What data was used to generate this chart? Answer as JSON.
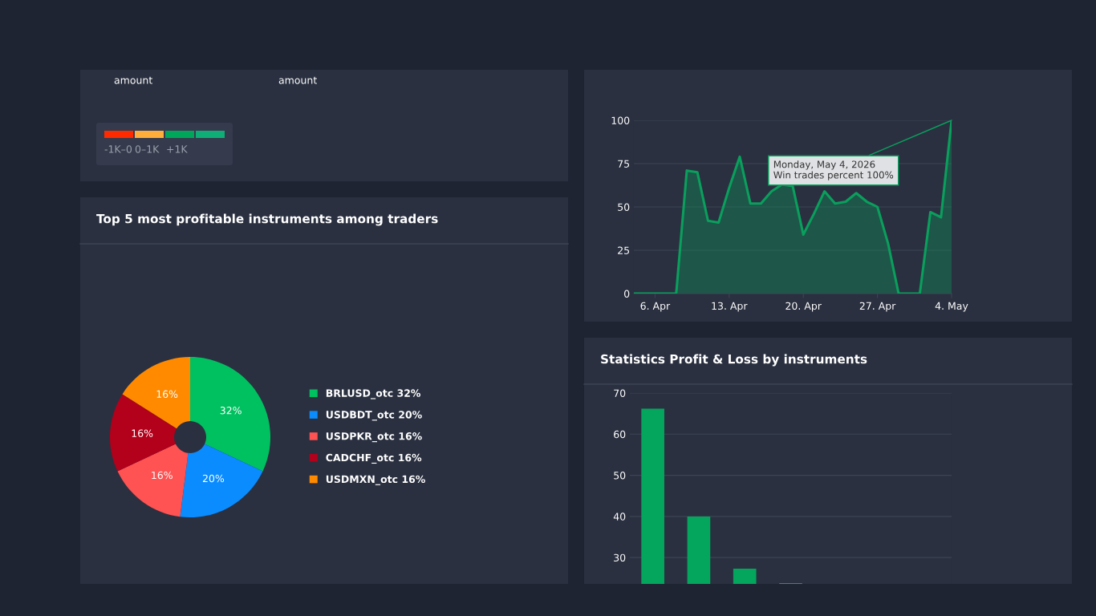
{
  "chart_data": [
    {
      "type": "other",
      "annotations": [
        "amount",
        "amount",
        "-1K–0",
        "0–1K",
        "+1K"
      ],
      "colors": [
        "#ff2a00",
        "#ffae3b",
        "#00a65a",
        "#0fae77"
      ]
    },
    {
      "type": "area",
      "x": [
        "2026-04-04",
        "2026-04-05",
        "2026-04-06",
        "2026-04-07",
        "2026-04-08",
        "2026-04-09",
        "2026-04-10",
        "2026-04-11",
        "2026-04-12",
        "2026-04-13",
        "2026-04-14",
        "2026-04-15",
        "2026-04-16",
        "2026-04-17",
        "2026-04-18",
        "2026-04-19",
        "2026-04-20",
        "2026-04-21",
        "2026-04-22",
        "2026-04-23",
        "2026-04-24",
        "2026-04-25",
        "2026-04-26",
        "2026-04-27",
        "2026-04-28",
        "2026-04-29",
        "2026-04-30",
        "2026-05-01",
        "2026-05-02",
        "2026-05-03",
        "2026-05-04"
      ],
      "series": [
        {
          "color": "#0a9f5c",
          "values": [
            0,
            0,
            0,
            0,
            0,
            71,
            70,
            42,
            41,
            61,
            79,
            52,
            52,
            59,
            63,
            62,
            34,
            46,
            59,
            52,
            53,
            58,
            53,
            50,
            29,
            0,
            0,
            0,
            47,
            44,
            100
          ]
        }
      ],
      "xlim": [
        "2026-04-04",
        "2026-05-04"
      ],
      "ylim": [
        0,
        100
      ],
      "yticks": [
        0,
        25,
        50,
        75,
        100
      ],
      "xticks": [
        {
          "value": "2026-04-06",
          "label": "6. Apr"
        },
        {
          "value": "2026-04-13",
          "label": "13. Apr"
        },
        {
          "value": "2026-04-20",
          "label": "20. Apr"
        },
        {
          "value": "2026-04-27",
          "label": "27. Apr"
        },
        {
          "value": "2026-05-04",
          "label": "4. May"
        }
      ],
      "grid": "y",
      "annotations": [
        {
          "text": "Monday, May 4, 2026\nWin trades percent 100%",
          "x": "2026-05-04",
          "y": 100
        }
      ]
    },
    {
      "type": "donut",
      "title": "Top 5 most profitable instruments among traders",
      "categories": [
        "BRLUSD_otc",
        "USDBDT_otc",
        "USDPKR_otc",
        "CADCHF_otc",
        "USDMXN_otc"
      ],
      "values": [
        32,
        20,
        16,
        16,
        16
      ],
      "value_labels": [
        "32%",
        "20%",
        "16%",
        "16%",
        "16%"
      ],
      "colors": [
        "#00c160",
        "#0a8cff",
        "#ff5252",
        "#b3001b",
        "#ff8a00"
      ],
      "legend": "right"
    },
    {
      "type": "bar",
      "title": "Statistics Profit & Loss by instruments",
      "categories": [
        null,
        null,
        null,
        null,
        null,
        null,
        null
      ],
      "values": [
        66.2,
        40,
        27.3,
        23.8,
        null,
        null,
        null
      ],
      "color": "#03a65c",
      "ylim": [
        23.6,
        70
      ],
      "yticks": [
        30,
        40,
        50,
        60,
        70
      ],
      "grid": "y",
      "tick_labels": "y"
    }
  ]
}
